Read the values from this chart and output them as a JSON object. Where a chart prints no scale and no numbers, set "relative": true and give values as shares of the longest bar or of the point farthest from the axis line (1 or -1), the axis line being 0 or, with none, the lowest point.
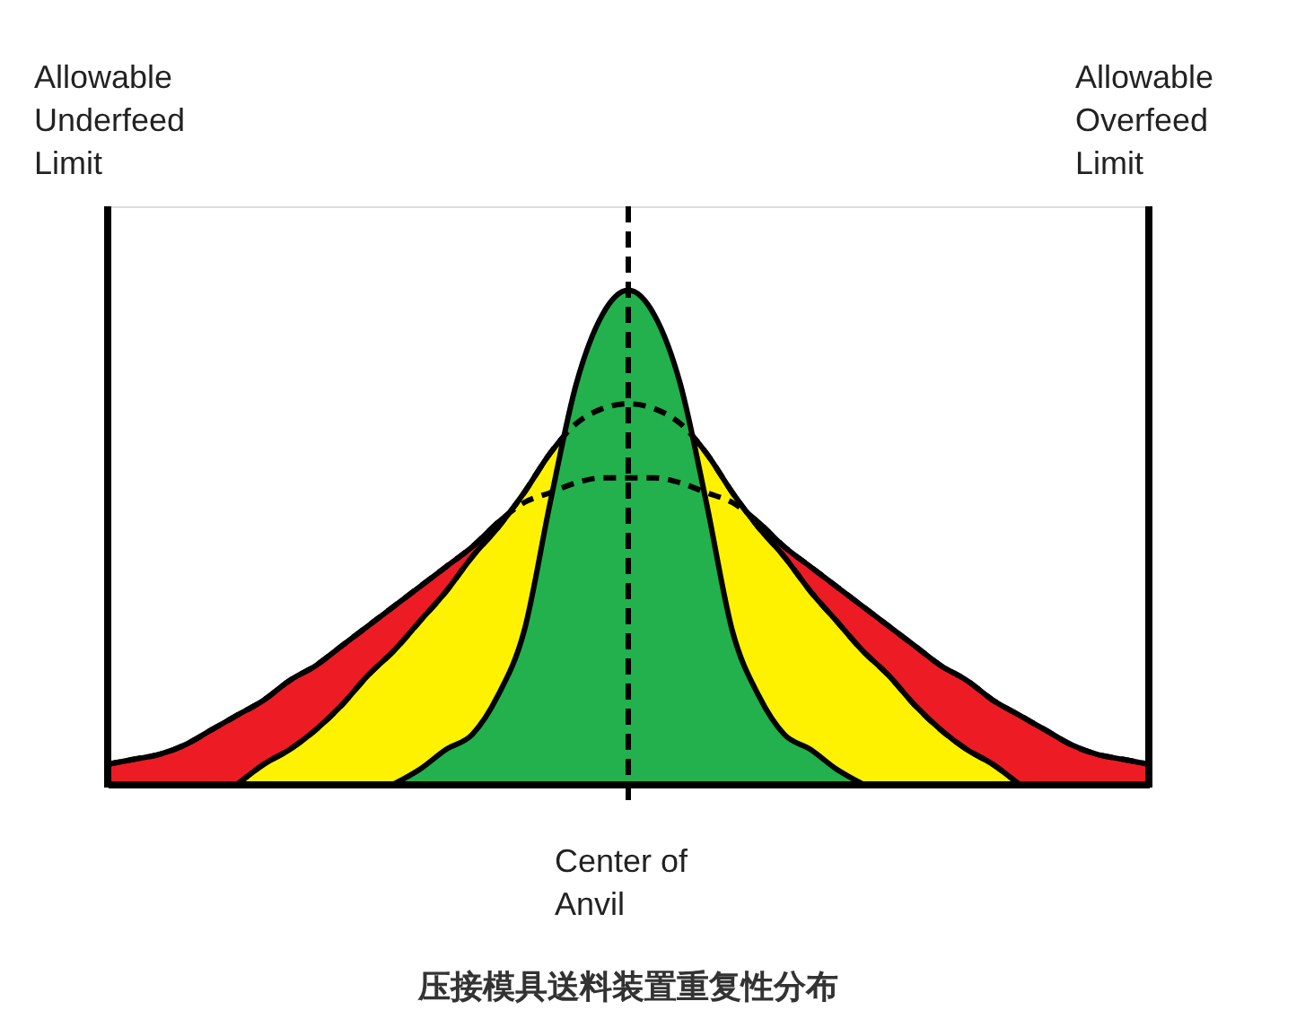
{
  "chart_data": {
    "type": "area",
    "relative": true,
    "title": "压接模具送料装置重复性分布",
    "categories": [
      null,
      null,
      null,
      null,
      null,
      null,
      null,
      null,
      null,
      null,
      null,
      null,
      null,
      null,
      null,
      null,
      null,
      null,
      null,
      null,
      null,
      null,
      null,
      null,
      null,
      null,
      null,
      null,
      null,
      null,
      null,
      null,
      null,
      null,
      null,
      null,
      null,
      null,
      null,
      null,
      null
    ],
    "series": [
      {
        "color": "#ed1c24",
        "values": [
          0.04,
          0.05,
          0.06,
          0.08,
          0.11,
          0.14,
          0.17,
          0.21,
          0.24,
          0.28,
          0.32,
          0.36,
          0.4,
          0.44,
          0.48,
          0.53,
          0.57,
          0.59,
          0.61,
          0.62,
          0.62,
          0.62,
          0.61,
          0.59,
          0.57,
          0.53,
          0.48,
          0.44,
          0.4,
          0.36,
          0.32,
          0.28,
          0.24,
          0.21,
          0.17,
          0.14,
          0.11,
          0.08,
          0.06,
          0.05,
          0.04
        ]
      },
      {
        "color": "#fff200",
        "values": [
          null,
          null,
          null,
          null,
          null,
          0,
          0.04,
          0.07,
          0.11,
          0.16,
          0.22,
          0.27,
          0.33,
          0.39,
          0.46,
          0.52,
          0.59,
          0.67,
          0.73,
          0.76,
          0.77,
          0.76,
          0.73,
          0.67,
          0.59,
          0.52,
          0.46,
          0.39,
          0.33,
          0.27,
          0.22,
          0.16,
          0.11,
          0.07,
          0.04,
          0,
          null,
          null,
          null,
          null,
          null
        ]
      },
      {
        "color": "#22b14c",
        "values": [
          null,
          null,
          null,
          null,
          null,
          null,
          null,
          null,
          null,
          null,
          null,
          0,
          0.03,
          0.07,
          0.1,
          0.18,
          0.31,
          0.57,
          0.81,
          0.95,
          1,
          0.95,
          0.81,
          0.57,
          0.31,
          0.18,
          0.1,
          0.07,
          0.03,
          0,
          null,
          null,
          null,
          null,
          null,
          null,
          null,
          null,
          null,
          null,
          null
        ]
      }
    ],
    "annotations": [
      "Allowable Underfeed Limit",
      "Allowable Overfeed Limit",
      "Center of Anvil"
    ]
  }
}
